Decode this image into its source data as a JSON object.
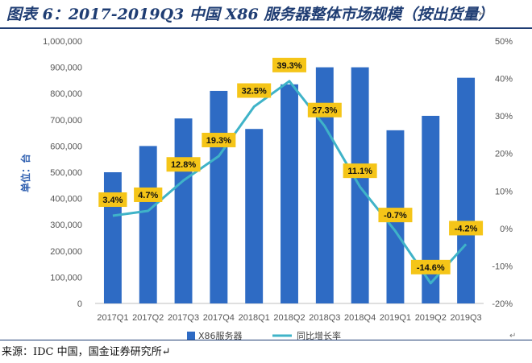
{
  "header": {
    "title": "图表 6：2017-2019Q3 中国 X86 服务器整体市场规模（按出货量）",
    "title_mark": "↵"
  },
  "footer": {
    "source": "来源：IDC 中国，国金证券研究所↵",
    "corner_mark": "↵"
  },
  "chart_data": {
    "type": "bar",
    "categories": [
      "2017Q1",
      "2017Q2",
      "2017Q3",
      "2017Q4",
      "2018Q1",
      "2018Q2",
      "2018Q3",
      "2018Q4",
      "2019Q1",
      "2019Q2",
      "2019Q3"
    ],
    "series": [
      {
        "name": "X86服务器",
        "type": "bar",
        "axis": "left",
        "color": "#2e6bc4",
        "values": [
          500000,
          600000,
          705000,
          810000,
          665000,
          835000,
          900000,
          900000,
          660000,
          715000,
          860000
        ]
      },
      {
        "name": "同比增长率",
        "type": "line",
        "axis": "right",
        "color": "#3fb3c8",
        "values": [
          3.4,
          4.7,
          12.8,
          19.3,
          32.5,
          39.3,
          27.3,
          11.1,
          -0.7,
          -14.6,
          -4.2
        ],
        "labels": [
          "3.4%",
          "4.7%",
          "12.8%",
          "19.3%",
          "32.5%",
          "39.3%",
          "27.3%",
          "11.1%",
          "-0.7%",
          "-14.6%",
          "-4.2%"
        ]
      }
    ],
    "ylabel": "单位：台",
    "ylim": [
      0,
      1000000
    ],
    "y_ticks": [
      "0",
      "100,000",
      "200,000",
      "300,000",
      "400,000",
      "500,000",
      "600,000",
      "700,000",
      "800,000",
      "900,000",
      "1,000,000"
    ],
    "y2lim": [
      -20,
      50
    ],
    "y2_ticks": [
      "-20%",
      "-10%",
      "0%",
      "10%",
      "20%",
      "30%",
      "40%",
      "50%"
    ],
    "data_label_color": "#f5c518",
    "legend_position": "bottom",
    "grid": false
  }
}
